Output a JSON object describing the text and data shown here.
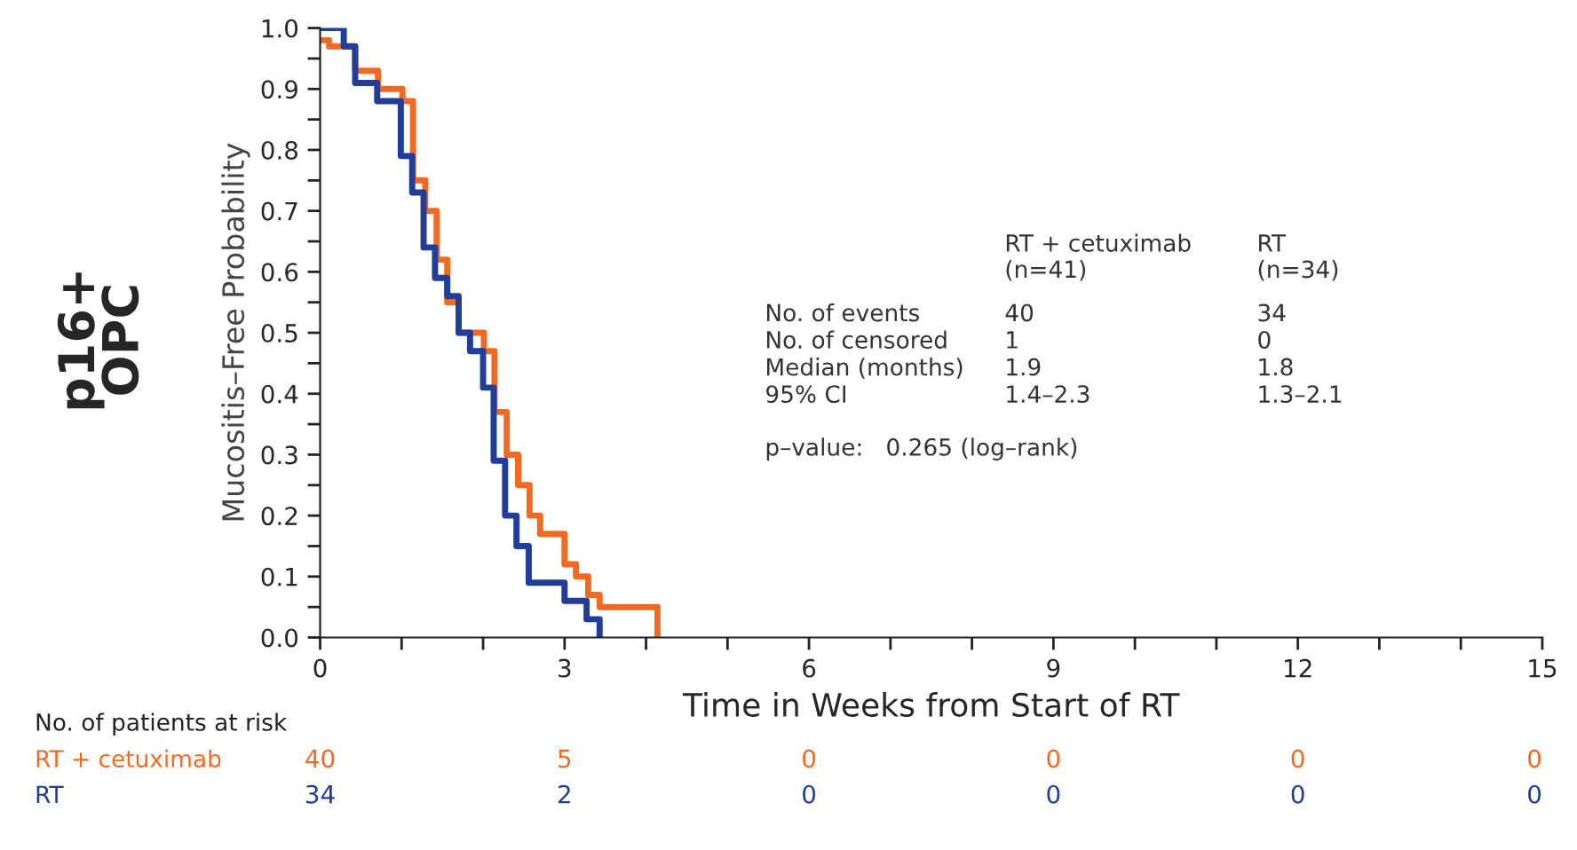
{
  "chart_data": {
    "type": "step",
    "title": "p16+\nOPC",
    "xlabel": "Time in Weeks from Start of RT",
    "ylabel": "Mucositis–Free Probability",
    "xlim": [
      0,
      15
    ],
    "ylim": [
      0,
      1.0
    ],
    "xticks": [
      0,
      {
        "value": 1,
        "label": null
      },
      {
        "value": 2,
        "label": null
      },
      3,
      {
        "value": 4,
        "label": null
      },
      {
        "value": 5,
        "label": null
      },
      6,
      {
        "value": 7,
        "label": null
      },
      {
        "value": 8,
        "label": null
      },
      9,
      {
        "value": 10,
        "label": null
      },
      {
        "value": 11,
        "label": null
      },
      12,
      {
        "value": 13,
        "label": null
      },
      {
        "value": 14,
        "label": null
      },
      15
    ],
    "yticks": [
      {
        "value": 0,
        "label": "0.0"
      },
      {
        "value": 0.05,
        "label": null
      },
      {
        "value": 0.1,
        "label": "0.1"
      },
      {
        "value": 0.15,
        "label": null
      },
      {
        "value": 0.2,
        "label": "0.2"
      },
      {
        "value": 0.25,
        "label": null
      },
      {
        "value": 0.3,
        "label": "0.3"
      },
      {
        "value": 0.35,
        "label": null
      },
      {
        "value": 0.4,
        "label": "0.4"
      },
      {
        "value": 0.45,
        "label": null
      },
      {
        "value": 0.5,
        "label": "0.5"
      },
      {
        "value": 0.55,
        "label": null
      },
      {
        "value": 0.6,
        "label": "0.6"
      },
      {
        "value": 0.65,
        "label": null
      },
      {
        "value": 0.7,
        "label": "0.7"
      },
      {
        "value": 0.75,
        "label": null
      },
      {
        "value": 0.8,
        "label": "0.8"
      },
      {
        "value": 0.85,
        "label": null
      },
      {
        "value": 0.9,
        "label": "0.9"
      },
      {
        "value": 0.95,
        "label": null
      },
      {
        "value": 1.0,
        "label": "1.0"
      }
    ],
    "grid": false,
    "legend": false,
    "line_style": "solid",
    "series": [
      {
        "color": "#f26a21",
        "x": [
          0,
          0.11,
          0.43,
          0.71,
          1.01,
          1.14,
          1.29,
          1.43,
          1.56,
          1.7,
          2.01,
          2.14,
          2.29,
          2.43,
          2.57,
          2.7,
          3.0,
          3.14,
          3.29,
          3.43,
          4.14
        ],
        "values": [
          0.98,
          0.97,
          0.93,
          0.9,
          0.88,
          0.75,
          0.7,
          0.62,
          0.55,
          0.5,
          0.47,
          0.37,
          0.3,
          0.25,
          0.2,
          0.17,
          0.12,
          0.1,
          0.07,
          0.05,
          0
        ]
      },
      {
        "color": "#1f3d99",
        "x": [
          0,
          0.29,
          0.43,
          0.7,
          0.99,
          1.13,
          1.27,
          1.41,
          1.56,
          1.7,
          1.84,
          2.0,
          2.13,
          2.27,
          2.41,
          2.56,
          3.0,
          3.27,
          3.43
        ],
        "values": [
          1.0,
          0.97,
          0.91,
          0.88,
          0.79,
          0.73,
          0.64,
          0.59,
          0.56,
          0.5,
          0.47,
          0.41,
          0.29,
          0.2,
          0.15,
          0.09,
          0.06,
          0.03,
          0
        ]
      }
    ],
    "annotations": [
      "RT + cetuximab\n(n=41)",
      "RT\n(n=34)",
      "No. of events\nNo. of censored\nMedian (months)\n95% CI",
      "40\n1\n1.9\n1.4–2.3",
      "34\n0\n1.8\n1.3–2.1",
      "p–value:   0.265 (log–rank)",
      "No. of patients at risk",
      "RT + cetuximab",
      "RT",
      "40",
      "5",
      "0",
      "0",
      "0",
      "0",
      "34",
      "2",
      "0",
      "0",
      "0",
      "0"
    ]
  }
}
